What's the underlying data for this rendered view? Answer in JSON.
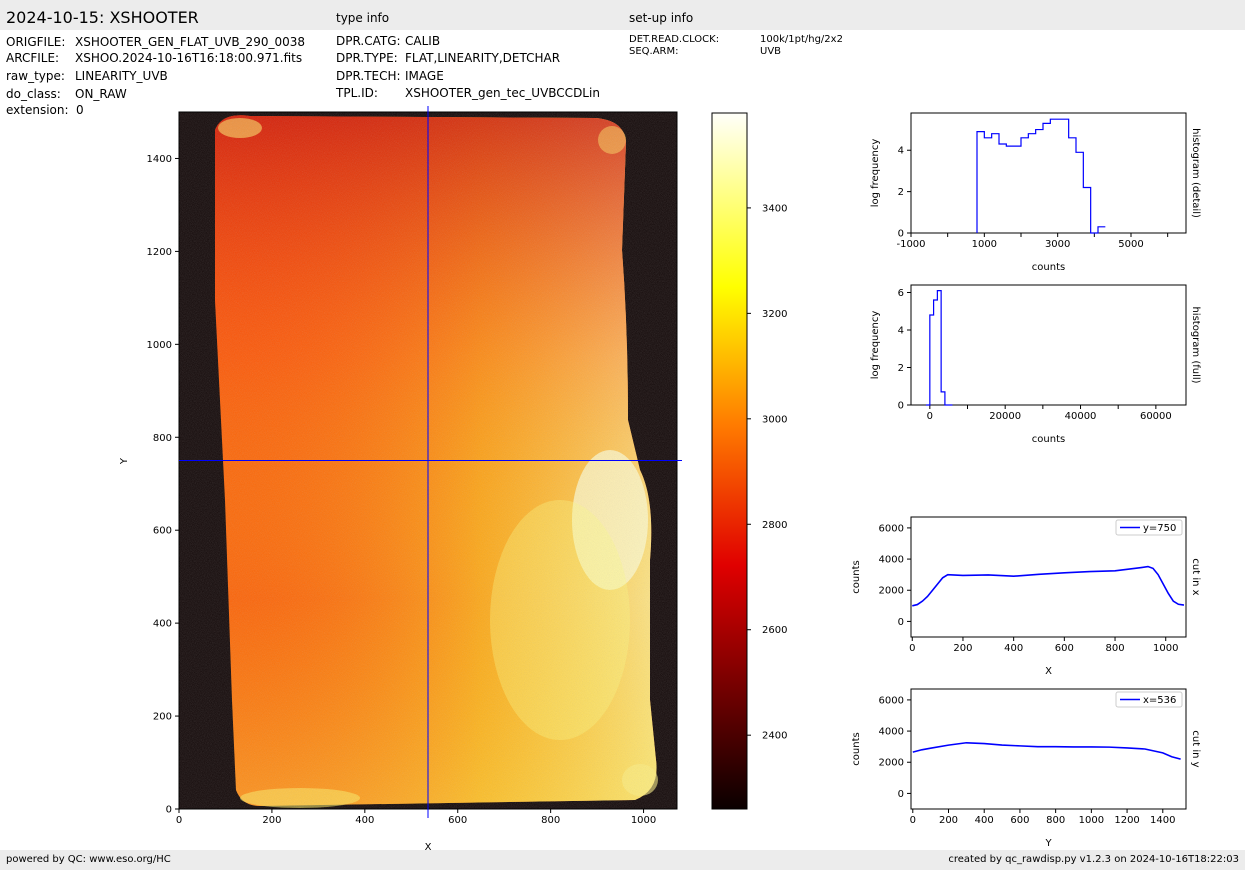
{
  "header": {
    "title": "2024-10-15: XSHOOTER",
    "section_type": "type info",
    "section_setup": "set-up info"
  },
  "file_info": [
    {
      "key": "ORIGFILE:",
      "value": "XSHOOTER_GEN_FLAT_UVB_290_0038"
    },
    {
      "key": "ARCFILE:",
      "value": "XSHOO.2024-10-16T16:18:00.971.fits"
    },
    {
      "key": "raw_type:",
      "value": "LINEARITY_UVB"
    },
    {
      "key": "do_class:",
      "value": "ON_RAW"
    },
    {
      "key": "extension:",
      "value": "0"
    }
  ],
  "type_info": [
    {
      "key": "DPR.CATG:",
      "value": "CALIB"
    },
    {
      "key": "DPR.TYPE:",
      "value": "FLAT,LINEARITY,DETCHAR"
    },
    {
      "key": "DPR.TECH:",
      "value": "IMAGE"
    },
    {
      "key": "TPL.ID:",
      "value": "XSHOOTER_gen_tec_UVBCCDLin"
    }
  ],
  "setup_info": [
    {
      "key": "DET.READ.CLOCK:",
      "value": "100k/1pt/hg/2x2"
    },
    {
      "key": "SEQ.ARM:",
      "value": "UVB"
    }
  ],
  "footer": {
    "left": "powered by QC: www.eso.org/HC",
    "right": "created by qc_rawdisp.py v1.2.3 on 2024-10-16T18:22:03"
  },
  "colors": {
    "accent": "#0000ff",
    "header_bg": "#ececec"
  },
  "chart_data": [
    {
      "type": "heatmap",
      "xlabel": "X",
      "ylabel": "Y",
      "xlim": [
        0,
        1072
      ],
      "ylim": [
        0,
        1500
      ],
      "xticks": [
        0,
        200,
        400,
        600,
        800,
        1000
      ],
      "yticks": [
        0,
        200,
        400,
        600,
        800,
        1000,
        1200,
        1400
      ],
      "crosshair": {
        "x": 536,
        "y": 750
      },
      "colorbar": {
        "range": [
          2260,
          3580
        ],
        "ticks": [
          2400,
          2600,
          2800,
          3000,
          3200,
          3400
        ]
      }
    },
    {
      "type": "line",
      "name": "histogram (detail)",
      "xlabel": "counts",
      "ylabel": "log frequency",
      "xlim": [
        -1000,
        6500
      ],
      "ylim": [
        0,
        5.8
      ],
      "xticks": [
        -1000,
        1000,
        3000,
        5000
      ],
      "xticks_minor": [
        0,
        2000,
        4000,
        6000
      ],
      "yticks": [
        0,
        2,
        4
      ],
      "x": [
        800,
        1000,
        1200,
        1400,
        1600,
        2000,
        2200,
        2400,
        2600,
        2800,
        3000,
        3300,
        3500,
        3700,
        3900,
        4100
      ],
      "values": [
        4.9,
        4.6,
        4.8,
        4.3,
        4.2,
        4.6,
        4.8,
        5.0,
        5.3,
        5.5,
        5.5,
        4.6,
        3.9,
        2.2,
        0.0,
        0.3
      ]
    },
    {
      "type": "line",
      "name": "histogram (full)",
      "xlabel": "counts",
      "ylabel": "log frequency",
      "xlim": [
        -5000,
        68000
      ],
      "ylim": [
        0,
        6.4
      ],
      "xticks": [
        0,
        20000,
        40000,
        60000
      ],
      "xticks_minor": [
        10000,
        30000,
        50000
      ],
      "yticks": [
        0,
        2,
        4,
        6
      ],
      "x": [
        -1000,
        0,
        1000,
        2000,
        3000,
        4000,
        5000
      ],
      "values": [
        0.0,
        4.8,
        5.6,
        6.1,
        0.7,
        0.0,
        0.0
      ]
    },
    {
      "type": "line",
      "name": "cut in x",
      "xlabel": "X",
      "ylabel": "counts",
      "xlim": [
        -5,
        1080
      ],
      "ylim": [
        -1000,
        6700
      ],
      "xticks": [
        0,
        200,
        400,
        600,
        800,
        1000
      ],
      "yticks": [
        0,
        2000,
        4000,
        6000
      ],
      "series": [
        {
          "name": "y=750",
          "x": [
            0,
            20,
            40,
            60,
            80,
            100,
            120,
            140,
            200,
            300,
            400,
            500,
            600,
            700,
            800,
            900,
            930,
            950,
            970,
            990,
            1010,
            1030,
            1050,
            1072
          ],
          "values": [
            1000,
            1080,
            1300,
            1600,
            2000,
            2400,
            2800,
            3000,
            2950,
            2980,
            2900,
            3020,
            3120,
            3200,
            3250,
            3450,
            3520,
            3400,
            3000,
            2400,
            1800,
            1300,
            1100,
            1050
          ]
        }
      ]
    },
    {
      "type": "line",
      "name": "cut in y",
      "xlabel": "Y",
      "ylabel": "counts",
      "xlim": [
        -10,
        1530
      ],
      "ylim": [
        -1000,
        6700
      ],
      "xticks": [
        0,
        200,
        400,
        600,
        800,
        1000,
        1200,
        1400
      ],
      "yticks": [
        0,
        2000,
        4000,
        6000
      ],
      "series": [
        {
          "name": "x=536",
          "x": [
            0,
            50,
            100,
            200,
            300,
            400,
            500,
            600,
            700,
            800,
            900,
            1000,
            1100,
            1200,
            1300,
            1400,
            1450,
            1500
          ],
          "values": [
            2650,
            2800,
            2900,
            3100,
            3250,
            3200,
            3100,
            3050,
            3000,
            3000,
            2980,
            2980,
            2970,
            2920,
            2850,
            2600,
            2350,
            2200
          ]
        }
      ]
    }
  ]
}
